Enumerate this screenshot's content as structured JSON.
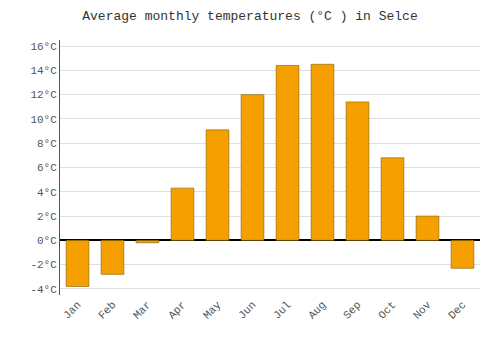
{
  "chart_data": {
    "type": "bar",
    "title": "Average monthly temperatures (°C ) in Selce",
    "categories": [
      "Jan",
      "Feb",
      "Mar",
      "Apr",
      "May",
      "Jun",
      "Jul",
      "Aug",
      "Sep",
      "Oct",
      "Nov",
      "Dec"
    ],
    "values": [
      -3.8,
      -2.8,
      -0.2,
      4.3,
      9.1,
      12.0,
      14.4,
      14.5,
      11.4,
      6.8,
      2.0,
      -2.3
    ],
    "color": "#F5A000",
    "ylim": [
      -4.5,
      16.5
    ],
    "yticks": [
      {
        "value": -4,
        "label": "-4°C"
      },
      {
        "value": -2,
        "label": "-2°C"
      },
      {
        "value": 0,
        "label": "0°C"
      },
      {
        "value": 2,
        "label": "2°C"
      },
      {
        "value": 4,
        "label": "4°C"
      },
      {
        "value": 6,
        "label": "6°C"
      },
      {
        "value": 8,
        "label": "8°C"
      },
      {
        "value": 10,
        "label": "10°C"
      },
      {
        "value": 12,
        "label": "12°C"
      },
      {
        "value": 14,
        "label": "14°C"
      },
      {
        "value": 16,
        "label": "16°C"
      }
    ],
    "grid": true
  }
}
